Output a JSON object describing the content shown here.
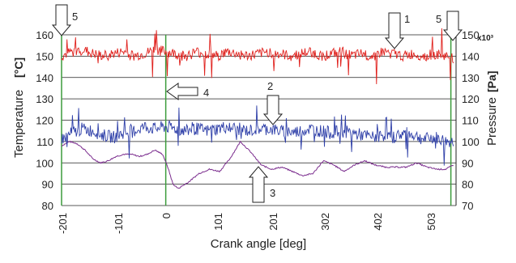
{
  "chart_data": {
    "type": "line",
    "xlabel": "Crank angle [deg]",
    "ylabel_left": "Temperature",
    "ylabel_left_unit": "[°C]",
    "ylabel_right": "Pressure",
    "ylabel_right_unit": "[Pa]",
    "right_axis_multiplier": "x10³",
    "x_ticks": [
      "-201",
      "-101",
      "0",
      "101",
      "201",
      "302",
      "402",
      "503"
    ],
    "xlim": [
      -201,
      560
    ],
    "y_left_ticks": [
      "80",
      "90",
      "100",
      "110",
      "120",
      "130",
      "140",
      "150",
      "160"
    ],
    "ylim_left": [
      80,
      160
    ],
    "y_right_ticks": [
      "70",
      "80",
      "90",
      "100",
      "110",
      "120",
      "130",
      "140",
      "150"
    ],
    "ylim_right": [
      70,
      150
    ],
    "grid": "horizontal",
    "vertical_markers": [
      -201,
      0,
      550
    ],
    "series": [
      {
        "color": "#e0201c",
        "axis": "left",
        "x": [
          -201,
          -181,
          -161,
          -141,
          -121,
          -101,
          -81,
          -61,
          -41,
          -21,
          -1,
          19,
          39,
          59,
          79,
          99,
          119,
          139,
          159,
          179,
          199,
          219,
          239,
          259,
          279,
          299,
          319,
          339,
          359,
          379,
          399,
          419,
          439,
          459,
          479,
          499,
          519,
          539,
          555
        ],
        "values": [
          150,
          152,
          153,
          151,
          150,
          151,
          152,
          150,
          151,
          153,
          152,
          151,
          150,
          152,
          151,
          150,
          152,
          151,
          150,
          151,
          152,
          151,
          150,
          151,
          152,
          150,
          151,
          152,
          150,
          151,
          150,
          152,
          151,
          150,
          151,
          150,
          151,
          150,
          149
        ]
      },
      {
        "color": "#2e3fa8",
        "axis": "left",
        "x": [
          -201,
          -181,
          -161,
          -141,
          -121,
          -101,
          -81,
          -61,
          -41,
          -21,
          -1,
          19,
          39,
          59,
          79,
          99,
          119,
          139,
          159,
          179,
          199,
          219,
          239,
          259,
          279,
          299,
          319,
          339,
          359,
          379,
          399,
          419,
          439,
          459,
          479,
          499,
          519,
          539,
          555
        ],
        "values": [
          111,
          114,
          116,
          115,
          113,
          112,
          114,
          115,
          117,
          116,
          117,
          116,
          115,
          116,
          115,
          116,
          117,
          116,
          115,
          116,
          116,
          115,
          114,
          115,
          116,
          115,
          114,
          115,
          114,
          113,
          112,
          113,
          112,
          114,
          113,
          111,
          112,
          110,
          110
        ]
      },
      {
        "color": "#7b2d8e",
        "axis": "left",
        "x": [
          -201,
          -186,
          -171,
          -156,
          -141,
          -126,
          -111,
          -96,
          -81,
          -66,
          -51,
          -36,
          -21,
          -6,
          4,
          14,
          24,
          44,
          64,
          84,
          104,
          124,
          144,
          164,
          184,
          204,
          224,
          244,
          264,
          284,
          304,
          324,
          344,
          364,
          384,
          404,
          424,
          444,
          464,
          484,
          504,
          524,
          540,
          555
        ],
        "values": [
          108,
          110,
          109,
          106,
          102,
          100,
          101,
          103,
          104,
          104,
          103,
          104,
          106,
          104,
          98,
          90,
          88,
          91,
          95,
          97,
          96,
          102,
          110,
          105,
          99,
          97,
          98,
          96,
          94,
          95,
          101,
          99,
          96,
          99,
          101,
          99,
          98,
          98,
          98,
          100,
          98,
          97,
          97,
          99
        ]
      }
    ],
    "annotations": [
      "1",
      "2",
      "3",
      "4",
      "5",
      "5"
    ]
  }
}
